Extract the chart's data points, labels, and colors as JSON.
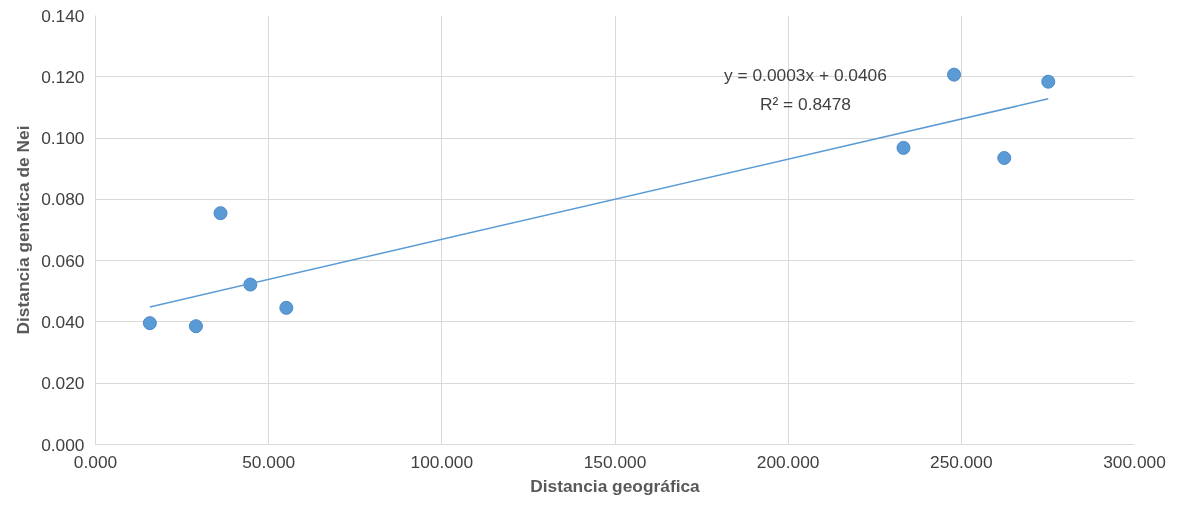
{
  "chart_data": {
    "type": "scatter",
    "xlabel": "Distancia geográfica",
    "ylabel": "Distancia genética de Nei",
    "x": [
      15.7,
      29.0,
      36.1,
      44.7,
      55.1,
      233.3,
      247.9,
      262.4,
      275.1
    ],
    "series": [
      {
        "color": "#5b9bd5",
        "marker": "circle",
        "values": [
          0.0396,
          0.0386,
          0.0755,
          0.0522,
          0.0446,
          0.0968,
          0.1207,
          0.0935,
          0.1184
        ]
      },
      {
        "type": "line",
        "marker": "none",
        "color": "#5b9bd5",
        "x": [
          15.7,
          275.1
        ],
        "values": [
          0.0449,
          0.1128
        ]
      }
    ],
    "xlim": [
      0,
      300
    ],
    "ylim": [
      0,
      0.14
    ],
    "xticks": [
      {
        "value": 0,
        "label": "0.000"
      },
      {
        "value": 50,
        "label": "50.000"
      },
      {
        "value": 100,
        "label": "100.000"
      },
      {
        "value": 150,
        "label": "150.000"
      },
      {
        "value": 200,
        "label": "200.000"
      },
      {
        "value": 250,
        "label": "250.000"
      },
      {
        "value": 300,
        "label": "300.000"
      }
    ],
    "yticks": [
      {
        "value": 0,
        "label": "0.000"
      },
      {
        "value": 0.02,
        "label": "0.020"
      },
      {
        "value": 0.04,
        "label": "0.040"
      },
      {
        "value": 0.06,
        "label": "0.060"
      },
      {
        "value": 0.08,
        "label": "0.080"
      },
      {
        "value": 0.1,
        "label": "0.100"
      },
      {
        "value": 0.12,
        "label": "0.120"
      },
      {
        "value": 0.14,
        "label": "0.140"
      }
    ],
    "annotations": [
      "y = 0.0003x + 0.0406",
      "R² = 0.8478"
    ],
    "grid": true,
    "line_style": "solid"
  }
}
